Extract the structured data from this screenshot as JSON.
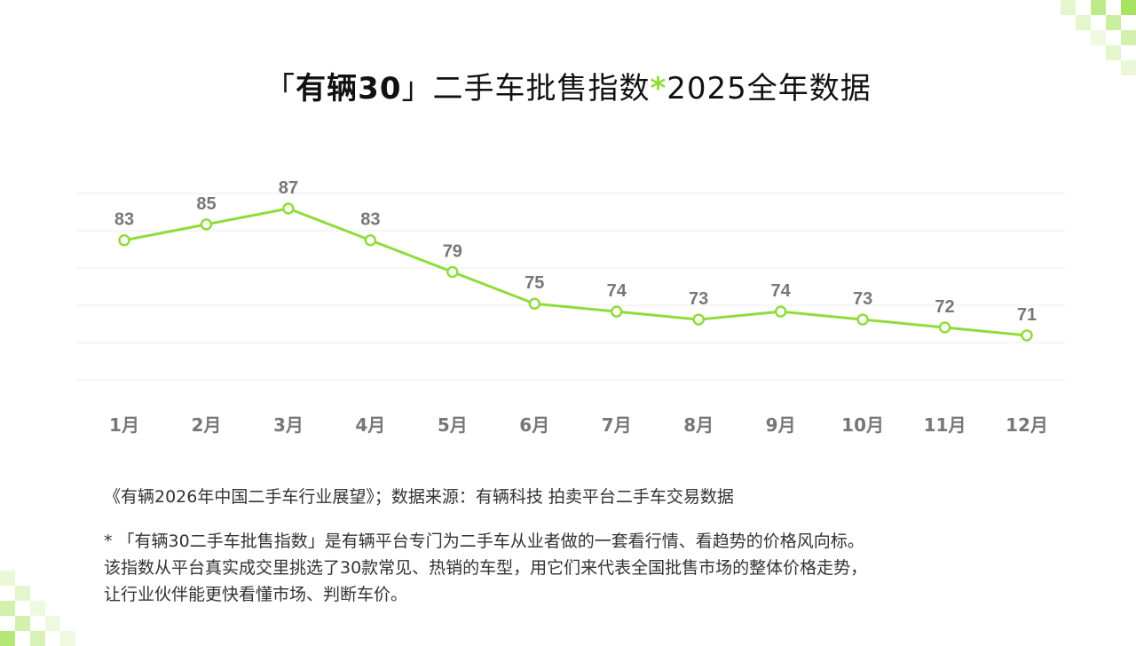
{
  "title": {
    "bracket_open": "「",
    "brand": "有辆30",
    "bracket_close": "」",
    "main": "二手车批售指数",
    "star": "*",
    "suffix": "2025全年数据"
  },
  "chart_data": {
    "type": "line",
    "categories": [
      "1月",
      "2月",
      "3月",
      "4月",
      "5月",
      "6月",
      "7月",
      "8月",
      "9月",
      "10月",
      "11月",
      "12月"
    ],
    "series": [
      {
        "values": [
          83,
          85,
          87,
          83,
          79,
          75,
          74,
          73,
          74,
          73,
          72,
          71
        ]
      }
    ],
    "ylim": [
      65.4,
      88.9
    ],
    "grid": true,
    "line_color": "#8fdc3a",
    "label_color": "#777777"
  },
  "source": "《有辆2026年中国二手车行业展望》；数据来源：有辆科技 拍卖平台二手车交易数据",
  "note_lines": [
    "* 「有辆30二手车批售指数」是有辆平台专门为二手车从业者做的一套看行情、看趋势的价格风向标。",
    "该指数从平台真实成交里挑选了30款常见、热销的车型，用它们来代表全国批售市场的整体价格走势，",
    "让行业伙伴能更快看懂市场、判断车价。"
  ]
}
